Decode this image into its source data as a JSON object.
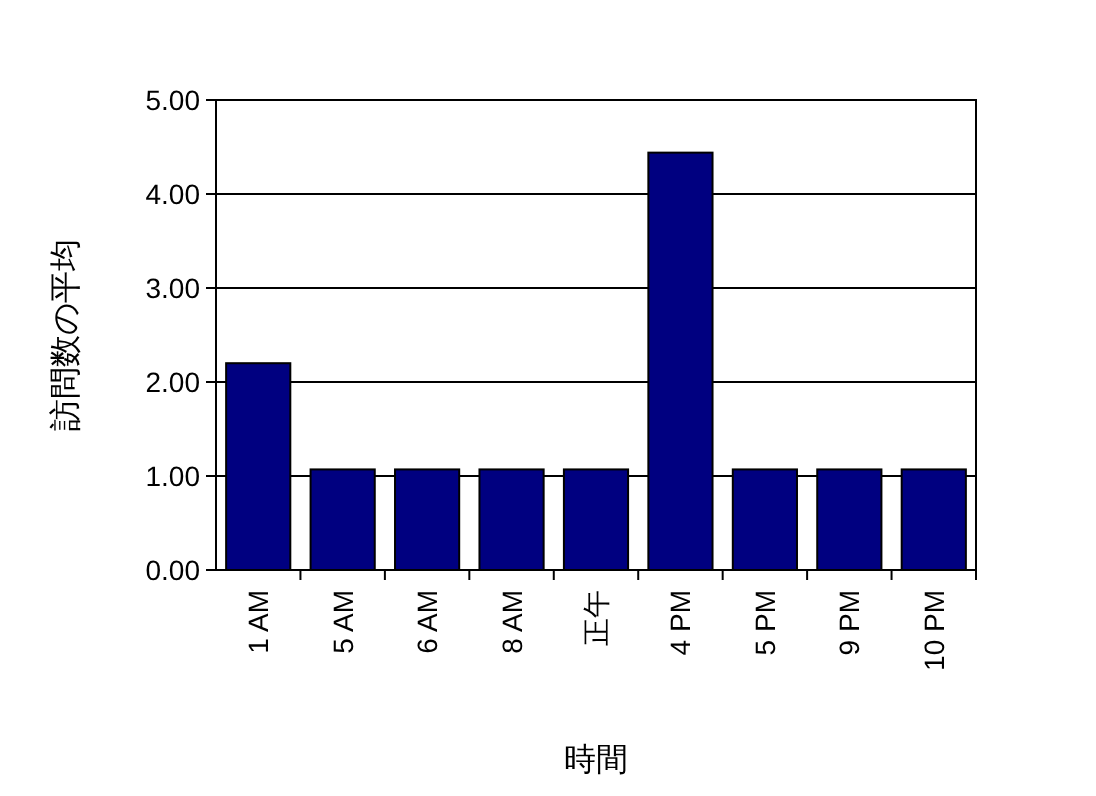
{
  "chart_data": {
    "type": "bar",
    "xlabel": "時間",
    "ylabel": "訪問数の平均",
    "categories": [
      "1 AM",
      "5 AM",
      "6 AM",
      "8 AM",
      "正午",
      "4 PM",
      "5 PM",
      "9 PM",
      "10 PM"
    ],
    "values": [
      2.2,
      1.07,
      1.07,
      1.07,
      1.07,
      4.44,
      1.07,
      1.07,
      1.07
    ],
    "color": "#000080",
    "ylim": [
      0,
      5
    ],
    "yticks": [
      {
        "value": 0,
        "label": "0.00"
      },
      {
        "value": 1,
        "label": "1.00"
      },
      {
        "value": 2,
        "label": "2.00"
      },
      {
        "value": 3,
        "label": "3.00"
      },
      {
        "value": 4,
        "label": "4.00"
      },
      {
        "value": 5,
        "label": "5.00"
      }
    ],
    "grid": "y"
  }
}
